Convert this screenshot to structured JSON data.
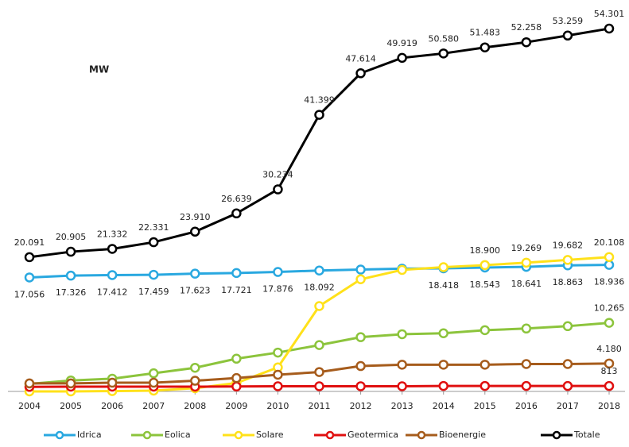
{
  "chart_data": {
    "type": "line",
    "title": "MW",
    "categories": [
      "2004",
      "2005",
      "2006",
      "2007",
      "2008",
      "2009",
      "2010",
      "2011",
      "2012",
      "2013",
      "2014",
      "2015",
      "2016",
      "2017",
      "2018"
    ],
    "series": [
      {
        "name": "Idrica",
        "color": "#29a8e0",
        "values": [
          17056,
          17326,
          17412,
          17459,
          17623,
          17721,
          17876,
          18092,
          18232,
          18366,
          18418,
          18543,
          18641,
          18863,
          18936
        ],
        "value_labels": [
          "17.056",
          "17.326",
          "17.412",
          "17.459",
          "17.623",
          "17.721",
          "17.876",
          "18.092",
          null,
          null,
          "18.418",
          "18.543",
          "18.641",
          "18.863",
          "18.936"
        ]
      },
      {
        "name": "Eolica",
        "color": "#8cc43c",
        "values": [
          1131,
          1639,
          1908,
          2714,
          3538,
          4898,
          5814,
          6936,
          8119,
          8561,
          8703,
          9162,
          9410,
          9766,
          10265
        ],
        "value_labels": [
          null,
          null,
          null,
          null,
          null,
          null,
          null,
          null,
          null,
          null,
          null,
          null,
          null,
          null,
          "10.265"
        ]
      },
      {
        "name": "Solare",
        "color": "#ffe11a",
        "values": [
          1,
          7,
          50,
          120,
          483,
          1264,
          3592,
          12773,
          16785,
          18185,
          18594,
          18900,
          19269,
          19682,
          20108
        ],
        "value_labels": [
          null,
          null,
          null,
          null,
          null,
          null,
          null,
          null,
          null,
          null,
          null,
          "18.900",
          "19.269",
          "19.682",
          "20.108"
        ]
      },
      {
        "name": "Geotermica",
        "color": "#e01010",
        "values": [
          681,
          711,
          711,
          711,
          711,
          737,
          772,
          772,
          772,
          773,
          821,
          821,
          815,
          813,
          813
        ],
        "value_labels": [
          null,
          null,
          null,
          null,
          null,
          null,
          null,
          null,
          null,
          null,
          null,
          null,
          null,
          null,
          "813"
        ]
      },
      {
        "name": "Bioenergie",
        "color": "#a65c1c",
        "values": [
          1200,
          1200,
          1300,
          1300,
          1600,
          2000,
          2500,
          2900,
          3800,
          4000,
          4000,
          4000,
          4100,
          4100,
          4180
        ],
        "value_labels": [
          null,
          null,
          null,
          null,
          null,
          null,
          null,
          null,
          null,
          null,
          null,
          null,
          null,
          null,
          "4.180"
        ]
      },
      {
        "name": "Totale",
        "color": "#000000",
        "values": [
          20091,
          20905,
          21332,
          22331,
          23910,
          26639,
          30234,
          41399,
          47614,
          49919,
          50580,
          51483,
          52258,
          53259,
          54301
        ],
        "value_labels": [
          "20.091",
          "20.905",
          "21.332",
          "22.331",
          "23.910",
          "26.639",
          "30.234",
          "41.399",
          "47.614",
          "49.919",
          "50.580",
          "51.483",
          "52.258",
          "53.259",
          "54.301"
        ]
      }
    ]
  }
}
